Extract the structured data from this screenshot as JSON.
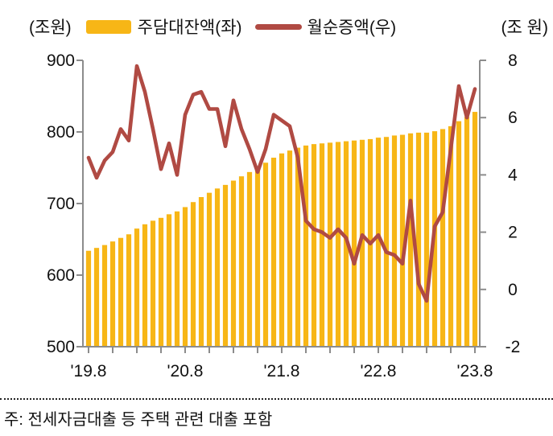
{
  "header": {
    "left_unit": "(조원)",
    "right_unit": "(조 원)",
    "legend": [
      {
        "label": "주담대잔액(좌)",
        "type": "bar",
        "color": "#F7B616"
      },
      {
        "label": "월순증액(우)",
        "type": "line",
        "color": "#B04A43"
      }
    ]
  },
  "footnote": "주: 전세자금대출 등 주택 관련 대출 포함",
  "chart_data": {
    "type": "bar+line combo",
    "title": "",
    "x_tick_labels": [
      "'19.8",
      "'20.8",
      "'21.8",
      "'22.8",
      "'23.8"
    ],
    "left_axis": {
      "label": "(조원)",
      "range": [
        500,
        900
      ],
      "ticks": [
        900,
        800,
        700,
        600,
        500
      ]
    },
    "right_axis": {
      "label": "(조 원)",
      "range": [
        -2,
        8
      ],
      "ticks": [
        8,
        6,
        4,
        2,
        0,
        -2
      ]
    },
    "grid": false,
    "legend_position": "top",
    "months": [
      "2019-08",
      "2019-09",
      "2019-10",
      "2019-11",
      "2019-12",
      "2020-01",
      "2020-02",
      "2020-03",
      "2020-04",
      "2020-05",
      "2020-06",
      "2020-07",
      "2020-08",
      "2020-09",
      "2020-10",
      "2020-11",
      "2020-12",
      "2021-01",
      "2021-02",
      "2021-03",
      "2021-04",
      "2021-05",
      "2021-06",
      "2021-07",
      "2021-08",
      "2021-09",
      "2021-10",
      "2021-11",
      "2021-12",
      "2022-01",
      "2022-02",
      "2022-03",
      "2022-04",
      "2022-05",
      "2022-06",
      "2022-07",
      "2022-08",
      "2022-09",
      "2022-10",
      "2022-11",
      "2022-12",
      "2023-01",
      "2023-02",
      "2023-03",
      "2023-04",
      "2023-05",
      "2023-06",
      "2023-07",
      "2023-08"
    ],
    "series": [
      {
        "name": "주담대잔액(좌)",
        "type": "bar",
        "axis": "left",
        "color": "#F7B616",
        "unit": "조원",
        "values": [
          634,
          638,
          642,
          647,
          652,
          657,
          665,
          671,
          676,
          680,
          685,
          689,
          695,
          702,
          709,
          715,
          721,
          726,
          732,
          738,
          744,
          750,
          757,
          764,
          770,
          774,
          778,
          781,
          783,
          784,
          785,
          786,
          787,
          788,
          789,
          790,
          792,
          793,
          795,
          796,
          798,
          799,
          799,
          801,
          804,
          808,
          815,
          821,
          828
        ]
      },
      {
        "name": "월순증액(우)",
        "type": "line",
        "axis": "right",
        "color": "#B04A43",
        "unit": "조원",
        "values": [
          4.6,
          3.9,
          4.5,
          4.8,
          5.6,
          5.2,
          7.8,
          6.9,
          5.6,
          4.2,
          5.1,
          4.0,
          6.1,
          6.8,
          6.9,
          6.3,
          6.3,
          5.0,
          6.6,
          5.6,
          4.9,
          4.1,
          4.9,
          6.1,
          5.9,
          5.7,
          4.6,
          2.4,
          2.1,
          2.0,
          1.8,
          2.1,
          1.8,
          0.9,
          1.9,
          1.6,
          1.9,
          1.3,
          1.2,
          0.9,
          3.1,
          0.2,
          -0.4,
          2.2,
          2.7,
          4.9,
          7.1,
          6.0,
          7.0
        ]
      }
    ]
  }
}
